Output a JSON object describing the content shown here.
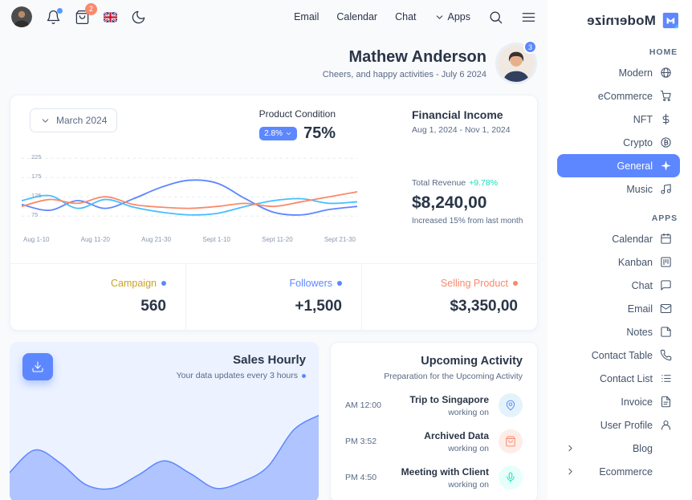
{
  "colors": {
    "primary": "#5d87ff",
    "secondary": "#49beff",
    "success": "#13deb9",
    "error": "#fa896b",
    "warning": "#c9a227"
  },
  "topbar": {
    "cart_badge": "2",
    "nav": {
      "email": "Email",
      "calendar": "Calendar",
      "chat": "Chat",
      "apps": "Apps"
    }
  },
  "logo": {
    "text": "Modernize"
  },
  "sidebar": {
    "sections": [
      {
        "label": "HOME",
        "items": [
          {
            "label": "Modern",
            "icon": "globe-icon"
          },
          {
            "label": "eCommerce",
            "icon": "cart-icon"
          },
          {
            "label": "NFT",
            "icon": "dollar-icon"
          },
          {
            "label": "Crypto",
            "icon": "coin-icon"
          },
          {
            "label": "General",
            "icon": "sparkle-icon",
            "active": true
          },
          {
            "label": "Music",
            "icon": "music-icon"
          }
        ]
      },
      {
        "label": "APPS",
        "items": [
          {
            "label": "Calendar",
            "icon": "calendar-icon"
          },
          {
            "label": "Kanban",
            "icon": "kanban-icon"
          },
          {
            "label": "Chat",
            "icon": "chat-bubble-icon"
          },
          {
            "label": "Email",
            "icon": "mail-icon"
          },
          {
            "label": "Notes",
            "icon": "note-icon"
          },
          {
            "label": "Contact Table",
            "icon": "phone-icon"
          },
          {
            "label": "Contact List",
            "icon": "list-icon"
          },
          {
            "label": "Invoice",
            "icon": "invoice-icon"
          },
          {
            "label": "User Profile",
            "icon": "user-icon"
          },
          {
            "label": "Blog",
            "icon": "chevron",
            "expandable": true
          },
          {
            "label": "Ecommerce",
            "icon": "chevron",
            "expandable": true
          }
        ]
      }
    ]
  },
  "profile": {
    "name": "Mathew Anderson",
    "subtitle": "Cheers, and happy activities - July 6 2024",
    "badge": "3"
  },
  "finance": {
    "month_selector": "March 2024",
    "product_condition": {
      "label": "Product Condition",
      "badge": "2.8%",
      "value": "75%"
    },
    "income": {
      "title": "Financial Income",
      "date_range": "Aug 1, 2024 - Nov 1, 2024"
    },
    "revenue": {
      "label": "Total Revenue",
      "delta": "+9.78%",
      "value": "$8,240,00",
      "note": "Increased 15% from last month"
    },
    "stats": [
      {
        "label": "Campaign",
        "value": "560",
        "color": "#c9a227"
      },
      {
        "label": "Followers",
        "value": "+1,500",
        "color": "#5d87ff"
      },
      {
        "label": "Selling Product",
        "value": "$3,350,00",
        "color": "#fa896b"
      }
    ]
  },
  "sales": {
    "title": "Sales Hourly",
    "subtitle": "Your data updates every 3 hours"
  },
  "activity": {
    "title": "Upcoming Activity",
    "subtitle": "Preparation for the Upcoming Activity",
    "items": [
      {
        "time": "AM 12:00",
        "title": "Trip to Singapore",
        "status": "working on",
        "icon": "location-icon"
      },
      {
        "time": "PM 3:52",
        "title": "Archived Data",
        "status": "working on",
        "icon": "bag-icon"
      },
      {
        "time": "PM 4:50",
        "title": "Meeting with Client",
        "status": "working on",
        "icon": "mic-icon"
      }
    ]
  },
  "chart_data": [
    {
      "type": "line",
      "title": "Financial Income",
      "categories": [
        "Aug 1-10",
        "Aug 11-20",
        "Aug 21-30",
        "Sept 1-10",
        "Sept 11-20",
        "Sept 21-30"
      ],
      "y_ticks": [
        75,
        125,
        175,
        225
      ],
      "ylim": [
        40,
        240
      ],
      "grid": "dashed-horizontal",
      "legend": "none",
      "series": [
        {
          "name": "series-blue",
          "color": "#5d87ff",
          "values": [
            105,
            90,
            115,
            95,
            120,
            150,
            168,
            160,
            120,
            85,
            78,
            92,
            100
          ]
        },
        {
          "name": "series-cyan",
          "color": "#49beff",
          "values": [
            115,
            128,
            95,
            118,
            98,
            85,
            78,
            82,
            100,
            115,
            120,
            108,
            112
          ]
        },
        {
          "name": "series-orange",
          "color": "#fa896b",
          "values": [
            100,
            118,
            108,
            125,
            105,
            98,
            95,
            100,
            108,
            100,
            112,
            125,
            138
          ]
        }
      ]
    },
    {
      "type": "area",
      "title": "Sales Hourly",
      "color": "#5d87ff",
      "fill_opacity": 0.42,
      "ylim": [
        0,
        100
      ],
      "values": [
        30,
        58,
        42,
        16,
        12,
        28,
        45,
        30,
        12,
        20,
        38,
        82,
        100
      ]
    }
  ]
}
